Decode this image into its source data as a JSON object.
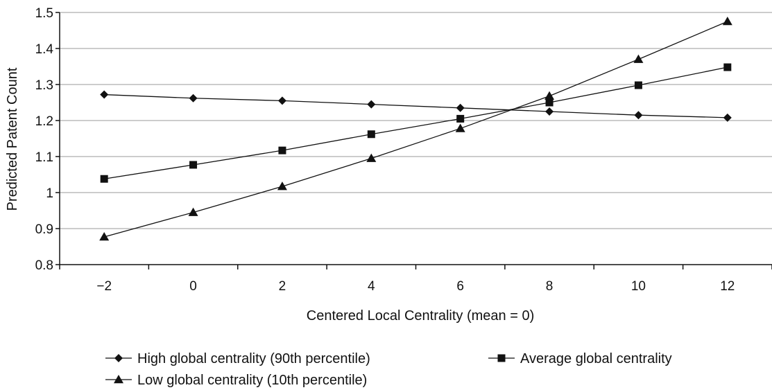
{
  "chart_data": {
    "type": "line",
    "title": "",
    "xlabel": "Centered Local Centrality (mean = 0)",
    "ylabel": "Predicted Patent Count",
    "x": [
      -2,
      0,
      2,
      4,
      6,
      8,
      10,
      12
    ],
    "x_tick_labels": [
      "−2",
      "0",
      "2",
      "4",
      "6",
      "8",
      "10",
      "12"
    ],
    "y_ticks": [
      0.8,
      0.9,
      1,
      1.1,
      1.2,
      1.3,
      1.4,
      1.5
    ],
    "y_tick_labels": [
      "0.8",
      "0.9",
      "1",
      "1.1",
      "1.2",
      "1.3",
      "1.4",
      "1.5"
    ],
    "xlim": [
      -3,
      13
    ],
    "ylim": [
      0.8,
      1.5
    ],
    "grid": "horizontal",
    "legend_position": "bottom",
    "series": [
      {
        "name": "High global centrality (90th percentile)",
        "marker": "diamond",
        "values": [
          1.272,
          1.262,
          1.255,
          1.245,
          1.235,
          1.225,
          1.215,
          1.208
        ]
      },
      {
        "name": "Average global centrality",
        "marker": "square",
        "values": [
          1.038,
          1.077,
          1.117,
          1.162,
          1.205,
          1.25,
          1.298,
          1.348
        ]
      },
      {
        "name": "Low global centrality (10th percentile)",
        "marker": "triangle",
        "values": [
          0.877,
          0.945,
          1.017,
          1.095,
          1.178,
          1.268,
          1.37,
          1.475
        ]
      }
    ]
  }
}
